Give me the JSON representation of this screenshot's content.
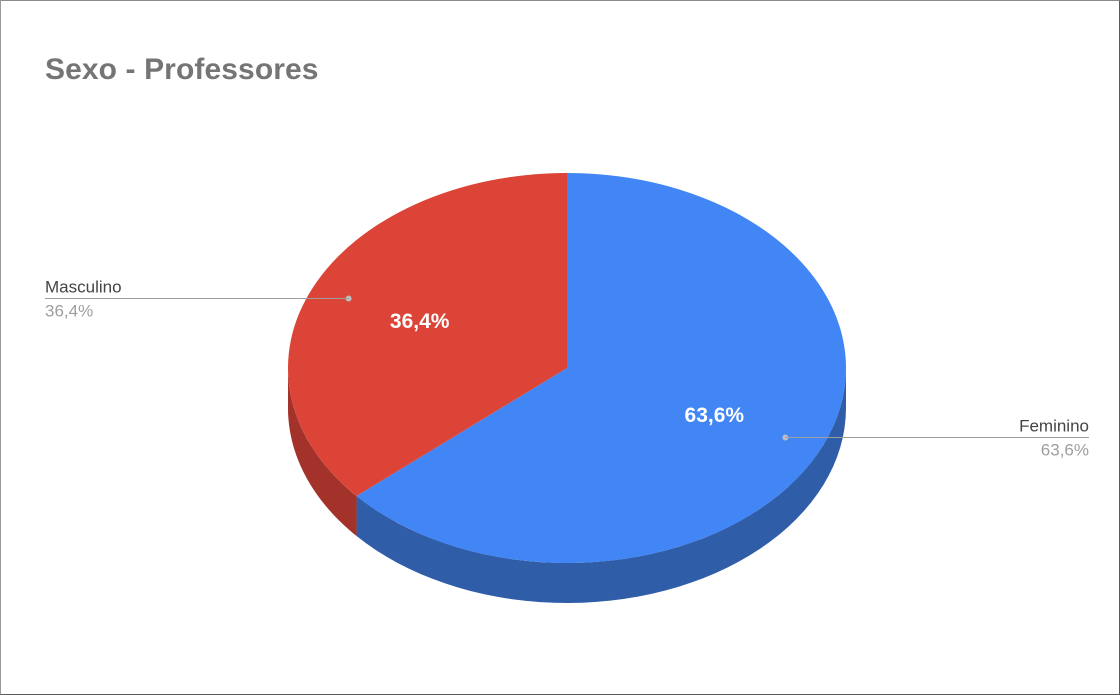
{
  "chart_data": {
    "type": "pie",
    "title": "Sexo - Professores",
    "is_3d": true,
    "slices": [
      {
        "label": "Feminino",
        "value": 63.6,
        "value_text": "63,6%",
        "color": "#4285f4",
        "side_color": "#2f5da8"
      },
      {
        "label": "Masculino",
        "value": 36.4,
        "value_text": "36,4%",
        "color": "#db4437",
        "side_color": "#a3322a"
      }
    ],
    "legend": "none",
    "labels": "outside-with-leader-lines"
  }
}
